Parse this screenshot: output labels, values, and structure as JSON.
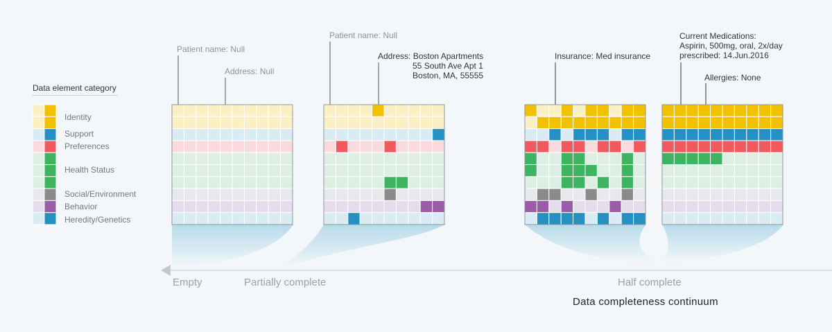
{
  "legend": {
    "title": "Data element category",
    "categories": [
      {
        "name": "Identity",
        "light": "#faf0c4",
        "dark": "#f2c200",
        "rows": 2
      },
      {
        "name": "Support",
        "light": "#d9ebf3",
        "dark": "#2591c3",
        "rows": 1
      },
      {
        "name": "Preferences",
        "light": "#fadadd",
        "dark": "#f05a5e",
        "rows": 1
      },
      {
        "name": "Health Status",
        "light": "#dcefe2",
        "dark": "#3db560",
        "rows": 3
      },
      {
        "name": "Social/Environment",
        "light": "#e6e8ec",
        "dark": "#8a8a8a",
        "rows": 1
      },
      {
        "name": "Behavior",
        "light": "#e6dced",
        "dark": "#9a5ba8",
        "rows": 1
      },
      {
        "name": "Heredity/Genetics",
        "light": "#d9ebf3",
        "dark": "#2591c3",
        "rows": 1
      }
    ]
  },
  "grids": [
    {
      "name": "empty",
      "filled": []
    },
    {
      "name": "partially-complete",
      "filled": [
        [
          0,
          4
        ],
        [
          2,
          9
        ],
        [
          3,
          1
        ],
        [
          3,
          5
        ],
        [
          6,
          5
        ],
        [
          6,
          6
        ],
        [
          7,
          5
        ],
        [
          8,
          8
        ],
        [
          8,
          9
        ],
        [
          9,
          2
        ]
      ]
    },
    {
      "name": "half-complete-a",
      "filled": [
        [
          0,
          0
        ],
        [
          0,
          3
        ],
        [
          0,
          5
        ],
        [
          0,
          6
        ],
        [
          0,
          8
        ],
        [
          0,
          9
        ],
        [
          1,
          1
        ],
        [
          1,
          2
        ],
        [
          1,
          3
        ],
        [
          1,
          4
        ],
        [
          1,
          5
        ],
        [
          1,
          6
        ],
        [
          1,
          7
        ],
        [
          1,
          8
        ],
        [
          1,
          9
        ],
        [
          2,
          2
        ],
        [
          2,
          4
        ],
        [
          2,
          5
        ],
        [
          2,
          6
        ],
        [
          2,
          8
        ],
        [
          2,
          9
        ],
        [
          3,
          0
        ],
        [
          3,
          1
        ],
        [
          3,
          3
        ],
        [
          3,
          4
        ],
        [
          3,
          6
        ],
        [
          3,
          7
        ],
        [
          3,
          9
        ],
        [
          4,
          0
        ],
        [
          4,
          3
        ],
        [
          4,
          4
        ],
        [
          4,
          8
        ],
        [
          5,
          0
        ],
        [
          5,
          3
        ],
        [
          5,
          4
        ],
        [
          5,
          5
        ],
        [
          5,
          8
        ],
        [
          6,
          3
        ],
        [
          6,
          4
        ],
        [
          6,
          6
        ],
        [
          6,
          8
        ],
        [
          7,
          1
        ],
        [
          7,
          2
        ],
        [
          7,
          5
        ],
        [
          7,
          8
        ],
        [
          8,
          0
        ],
        [
          8,
          1
        ],
        [
          8,
          3
        ],
        [
          8,
          7
        ],
        [
          9,
          1
        ],
        [
          9,
          2
        ],
        [
          9,
          3
        ],
        [
          9,
          4
        ],
        [
          9,
          6
        ],
        [
          9,
          8
        ],
        [
          9,
          9
        ]
      ]
    },
    {
      "name": "half-complete-b",
      "filled": "half"
    }
  ],
  "annotations": {
    "grid1_name": "Patient name: Null",
    "grid1_address": "Address: Null",
    "grid2_name": "Patient name: Null",
    "grid2_address": "Address: Boston Apartments\n               55 South Ave Apt 1\n               Boston, MA, 55555",
    "grid3_insurance": "Insurance: Med insurance",
    "grid4_medications": "Current Medications:\nAspirin, 500mg, oral, 2x/day\nprescribed: 14.Jun.2016",
    "grid4_allergies": "Allergies: None"
  },
  "axis": {
    "labels": [
      "Empty",
      "Partially complete",
      "Half complete"
    ],
    "title": "Data completeness continuum"
  }
}
